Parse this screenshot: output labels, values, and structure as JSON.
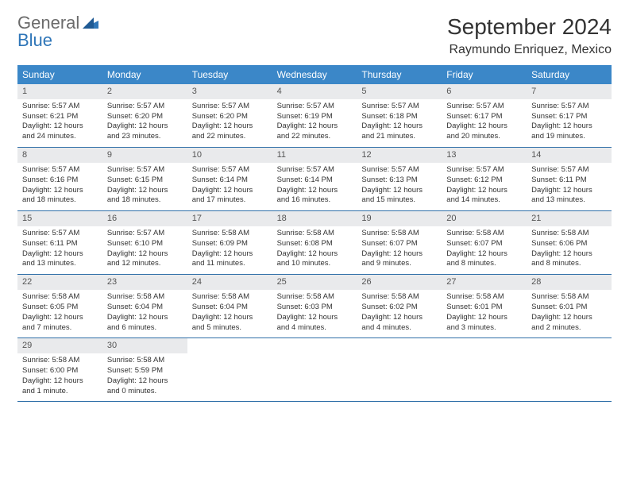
{
  "logo": {
    "text_general": "General",
    "text_blue": "Blue"
  },
  "header": {
    "month_title": "September 2024",
    "location": "Raymundo Enriquez, Mexico"
  },
  "colors": {
    "header_bg": "#3b87c8",
    "header_text": "#ffffff",
    "daynum_bg": "#e9eaec",
    "week_border": "#2f6fa8",
    "body_text": "#333333",
    "logo_gray": "#6b6b6b",
    "logo_blue": "#2f76b8"
  },
  "day_names": [
    "Sunday",
    "Monday",
    "Tuesday",
    "Wednesday",
    "Thursday",
    "Friday",
    "Saturday"
  ],
  "weeks": [
    [
      {
        "n": "1",
        "sr": "Sunrise: 5:57 AM",
        "ss": "Sunset: 6:21 PM",
        "dl1": "Daylight: 12 hours",
        "dl2": "and 24 minutes."
      },
      {
        "n": "2",
        "sr": "Sunrise: 5:57 AM",
        "ss": "Sunset: 6:20 PM",
        "dl1": "Daylight: 12 hours",
        "dl2": "and 23 minutes."
      },
      {
        "n": "3",
        "sr": "Sunrise: 5:57 AM",
        "ss": "Sunset: 6:20 PM",
        "dl1": "Daylight: 12 hours",
        "dl2": "and 22 minutes."
      },
      {
        "n": "4",
        "sr": "Sunrise: 5:57 AM",
        "ss": "Sunset: 6:19 PM",
        "dl1": "Daylight: 12 hours",
        "dl2": "and 22 minutes."
      },
      {
        "n": "5",
        "sr": "Sunrise: 5:57 AM",
        "ss": "Sunset: 6:18 PM",
        "dl1": "Daylight: 12 hours",
        "dl2": "and 21 minutes."
      },
      {
        "n": "6",
        "sr": "Sunrise: 5:57 AM",
        "ss": "Sunset: 6:17 PM",
        "dl1": "Daylight: 12 hours",
        "dl2": "and 20 minutes."
      },
      {
        "n": "7",
        "sr": "Sunrise: 5:57 AM",
        "ss": "Sunset: 6:17 PM",
        "dl1": "Daylight: 12 hours",
        "dl2": "and 19 minutes."
      }
    ],
    [
      {
        "n": "8",
        "sr": "Sunrise: 5:57 AM",
        "ss": "Sunset: 6:16 PM",
        "dl1": "Daylight: 12 hours",
        "dl2": "and 18 minutes."
      },
      {
        "n": "9",
        "sr": "Sunrise: 5:57 AM",
        "ss": "Sunset: 6:15 PM",
        "dl1": "Daylight: 12 hours",
        "dl2": "and 18 minutes."
      },
      {
        "n": "10",
        "sr": "Sunrise: 5:57 AM",
        "ss": "Sunset: 6:14 PM",
        "dl1": "Daylight: 12 hours",
        "dl2": "and 17 minutes."
      },
      {
        "n": "11",
        "sr": "Sunrise: 5:57 AM",
        "ss": "Sunset: 6:14 PM",
        "dl1": "Daylight: 12 hours",
        "dl2": "and 16 minutes."
      },
      {
        "n": "12",
        "sr": "Sunrise: 5:57 AM",
        "ss": "Sunset: 6:13 PM",
        "dl1": "Daylight: 12 hours",
        "dl2": "and 15 minutes."
      },
      {
        "n": "13",
        "sr": "Sunrise: 5:57 AM",
        "ss": "Sunset: 6:12 PM",
        "dl1": "Daylight: 12 hours",
        "dl2": "and 14 minutes."
      },
      {
        "n": "14",
        "sr": "Sunrise: 5:57 AM",
        "ss": "Sunset: 6:11 PM",
        "dl1": "Daylight: 12 hours",
        "dl2": "and 13 minutes."
      }
    ],
    [
      {
        "n": "15",
        "sr": "Sunrise: 5:57 AM",
        "ss": "Sunset: 6:11 PM",
        "dl1": "Daylight: 12 hours",
        "dl2": "and 13 minutes."
      },
      {
        "n": "16",
        "sr": "Sunrise: 5:57 AM",
        "ss": "Sunset: 6:10 PM",
        "dl1": "Daylight: 12 hours",
        "dl2": "and 12 minutes."
      },
      {
        "n": "17",
        "sr": "Sunrise: 5:58 AM",
        "ss": "Sunset: 6:09 PM",
        "dl1": "Daylight: 12 hours",
        "dl2": "and 11 minutes."
      },
      {
        "n": "18",
        "sr": "Sunrise: 5:58 AM",
        "ss": "Sunset: 6:08 PM",
        "dl1": "Daylight: 12 hours",
        "dl2": "and 10 minutes."
      },
      {
        "n": "19",
        "sr": "Sunrise: 5:58 AM",
        "ss": "Sunset: 6:07 PM",
        "dl1": "Daylight: 12 hours",
        "dl2": "and 9 minutes."
      },
      {
        "n": "20",
        "sr": "Sunrise: 5:58 AM",
        "ss": "Sunset: 6:07 PM",
        "dl1": "Daylight: 12 hours",
        "dl2": "and 8 minutes."
      },
      {
        "n": "21",
        "sr": "Sunrise: 5:58 AM",
        "ss": "Sunset: 6:06 PM",
        "dl1": "Daylight: 12 hours",
        "dl2": "and 8 minutes."
      }
    ],
    [
      {
        "n": "22",
        "sr": "Sunrise: 5:58 AM",
        "ss": "Sunset: 6:05 PM",
        "dl1": "Daylight: 12 hours",
        "dl2": "and 7 minutes."
      },
      {
        "n": "23",
        "sr": "Sunrise: 5:58 AM",
        "ss": "Sunset: 6:04 PM",
        "dl1": "Daylight: 12 hours",
        "dl2": "and 6 minutes."
      },
      {
        "n": "24",
        "sr": "Sunrise: 5:58 AM",
        "ss": "Sunset: 6:04 PM",
        "dl1": "Daylight: 12 hours",
        "dl2": "and 5 minutes."
      },
      {
        "n": "25",
        "sr": "Sunrise: 5:58 AM",
        "ss": "Sunset: 6:03 PM",
        "dl1": "Daylight: 12 hours",
        "dl2": "and 4 minutes."
      },
      {
        "n": "26",
        "sr": "Sunrise: 5:58 AM",
        "ss": "Sunset: 6:02 PM",
        "dl1": "Daylight: 12 hours",
        "dl2": "and 4 minutes."
      },
      {
        "n": "27",
        "sr": "Sunrise: 5:58 AM",
        "ss": "Sunset: 6:01 PM",
        "dl1": "Daylight: 12 hours",
        "dl2": "and 3 minutes."
      },
      {
        "n": "28",
        "sr": "Sunrise: 5:58 AM",
        "ss": "Sunset: 6:01 PM",
        "dl1": "Daylight: 12 hours",
        "dl2": "and 2 minutes."
      }
    ],
    [
      {
        "n": "29",
        "sr": "Sunrise: 5:58 AM",
        "ss": "Sunset: 6:00 PM",
        "dl1": "Daylight: 12 hours",
        "dl2": "and 1 minute."
      },
      {
        "n": "30",
        "sr": "Sunrise: 5:58 AM",
        "ss": "Sunset: 5:59 PM",
        "dl1": "Daylight: 12 hours",
        "dl2": "and 0 minutes."
      },
      null,
      null,
      null,
      null,
      null
    ]
  ]
}
